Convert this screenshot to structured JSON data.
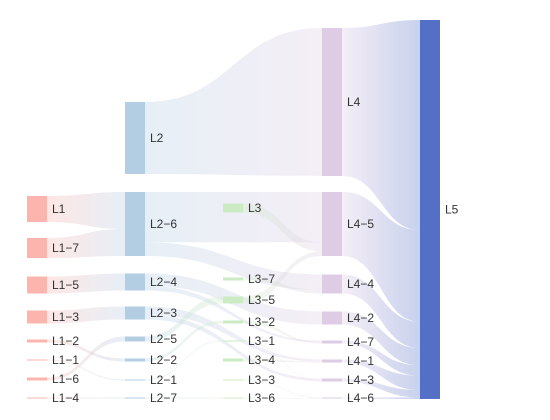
{
  "chart_data": {
    "type": "sankey",
    "nodes": [
      {
        "id": "L1",
        "label": "L1",
        "level": 1,
        "value": 3
      },
      {
        "id": "L1-7",
        "label": "L1−7",
        "level": 1,
        "value": 2.2
      },
      {
        "id": "L1-5",
        "label": "L1−5",
        "level": 1,
        "value": 1.8
      },
      {
        "id": "L1-3",
        "label": "L1−3",
        "level": 1,
        "value": 1.3
      },
      {
        "id": "L1-2",
        "label": "L1−2",
        "level": 1,
        "value": 0.3
      },
      {
        "id": "L1-1",
        "label": "L1−1",
        "level": 1,
        "value": 0.06
      },
      {
        "id": "L1-6",
        "label": "L1−6",
        "level": 1,
        "value": 0.3
      },
      {
        "id": "L1-4",
        "label": "L1−4",
        "level": 1,
        "value": 0.06
      },
      {
        "id": "L2",
        "label": "L2",
        "level": 2,
        "value": 8
      },
      {
        "id": "L2-6",
        "label": "L2−6",
        "level": 2,
        "value": 7
      },
      {
        "id": "L2-4",
        "label": "L2−4",
        "level": 2,
        "value": 1.8
      },
      {
        "id": "L2-3",
        "label": "L2−3",
        "level": 2,
        "value": 1.3
      },
      {
        "id": "L2-5",
        "label": "L2−5",
        "level": 2,
        "value": 0.6
      },
      {
        "id": "L2-2",
        "label": "L2−2",
        "level": 2,
        "value": 0.3
      },
      {
        "id": "L2-1",
        "label": "L2−1",
        "level": 2,
        "value": 0.06
      },
      {
        "id": "L2-7",
        "label": "L2−7",
        "level": 2,
        "value": 0.06
      },
      {
        "id": "L3",
        "label": "L3",
        "level": 3,
        "value": 1
      },
      {
        "id": "L3-7",
        "label": "L3−7",
        "level": 3,
        "value": 0.3
      },
      {
        "id": "L3-5",
        "label": "L3−5",
        "level": 3,
        "value": 0.7
      },
      {
        "id": "L3-2",
        "label": "L3−2",
        "level": 3,
        "value": 0.3
      },
      {
        "id": "L3-1",
        "label": "L3−1",
        "level": 3,
        "value": 0.06
      },
      {
        "id": "L3-4",
        "label": "L3−4",
        "level": 3,
        "value": 0.3
      },
      {
        "id": "L3-3",
        "label": "L3−3",
        "level": 3,
        "value": 0.06
      },
      {
        "id": "L3-6",
        "label": "L3−6",
        "level": 3,
        "value": 0.06
      },
      {
        "id": "L4",
        "label": "L4",
        "level": 4,
        "value": 16
      },
      {
        "id": "L4-5",
        "label": "L4−5",
        "level": 4,
        "value": 7
      },
      {
        "id": "L4-4",
        "label": "L4−4",
        "level": 4,
        "value": 2
      },
      {
        "id": "L4-2",
        "label": "L4−2",
        "level": 4,
        "value": 1.3
      },
      {
        "id": "L4-7",
        "label": "L4−7",
        "level": 4,
        "value": 0.3
      },
      {
        "id": "L4-1",
        "label": "L4−1",
        "level": 4,
        "value": 0.3
      },
      {
        "id": "L4-3",
        "label": "L4−3",
        "level": 4,
        "value": 0.3
      },
      {
        "id": "L4-6",
        "label": "L4−6",
        "level": 4,
        "value": 0.06
      },
      {
        "id": "L5",
        "label": "L5",
        "level": 5,
        "value": 40
      }
    ],
    "links": [
      {
        "source": "L1",
        "target": "L2-6",
        "value": 3
      },
      {
        "source": "L1-7",
        "target": "L2-6",
        "value": 2.2
      },
      {
        "source": "L1-5",
        "target": "L2-4",
        "value": 1.8
      },
      {
        "source": "L1-3",
        "target": "L2-3",
        "value": 1.3
      },
      {
        "source": "L1-2",
        "target": "L2-2",
        "value": 0.3
      },
      {
        "source": "L1-6",
        "target": "L2-5",
        "value": 0.3
      },
      {
        "source": "L1-1",
        "target": "L2-1",
        "value": 0.06
      },
      {
        "source": "L1-4",
        "target": "L2-7",
        "value": 0.06
      },
      {
        "source": "L2",
        "target": "L4",
        "value": 8
      },
      {
        "source": "L2-6",
        "target": "L4-5",
        "value": 5.5
      },
      {
        "source": "L2-6",
        "target": "L4-4",
        "value": 1.5
      },
      {
        "source": "L2-4",
        "target": "L4-2",
        "value": 1.3
      },
      {
        "source": "L2-4",
        "target": "L4-7",
        "value": 0.5
      },
      {
        "source": "L2-3",
        "target": "L4-1",
        "value": 0.8
      },
      {
        "source": "L2-3",
        "target": "L4-3",
        "value": 0.5
      },
      {
        "source": "L2-5",
        "target": "L3-5",
        "value": 0.6
      },
      {
        "source": "L2-2",
        "target": "L3-2",
        "value": 0.3
      },
      {
        "source": "L2-1",
        "target": "L3-1",
        "value": 0.06
      },
      {
        "source": "L2-7",
        "target": "L3-6",
        "value": 0.06
      },
      {
        "source": "L3",
        "target": "L4-5",
        "value": 1
      },
      {
        "source": "L3-7",
        "target": "L4-4",
        "value": 0.3
      },
      {
        "source": "L3-5",
        "target": "L4-5",
        "value": 0.5
      },
      {
        "source": "L3-2",
        "target": "L4-7",
        "value": 0.3
      },
      {
        "source": "L3-4",
        "target": "L4-1",
        "value": 0.3
      },
      {
        "source": "L3-1",
        "target": "L4-3",
        "value": 0.06
      },
      {
        "source": "L3-3",
        "target": "L4-6",
        "value": 0.06
      },
      {
        "source": "L3-6",
        "target": "L4-6",
        "value": 0.06
      },
      {
        "source": "L4",
        "target": "L5",
        "value": 16
      },
      {
        "source": "L4-5",
        "target": "L5",
        "value": 7
      },
      {
        "source": "L4-4",
        "target": "L5",
        "value": 2
      },
      {
        "source": "L4-2",
        "target": "L5",
        "value": 1.3
      },
      {
        "source": "L4-7",
        "target": "L5",
        "value": 0.8
      },
      {
        "source": "L4-1",
        "target": "L5",
        "value": 1.1
      },
      {
        "source": "L4-3",
        "target": "L5",
        "value": 0.56
      },
      {
        "source": "L4-6",
        "target": "L5",
        "value": 0.12
      }
    ]
  },
  "colors": {
    "level1": "#fbb4ae",
    "level2": "#b3cde3",
    "level3": "#ccebc5",
    "level4": "#decbe4",
    "level5": "#5470c6",
    "label": "#333333"
  }
}
